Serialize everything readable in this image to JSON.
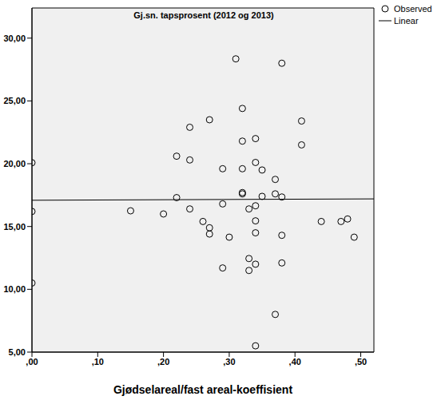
{
  "chart_data": {
    "type": "scatter",
    "title": "Gj.sn. tapsprosent (2012 og 2013)",
    "x_label": "Gjødselareal/fast areal-koeffisient",
    "xlim": [
      0,
      0.52
    ],
    "ylim": [
      5,
      32.4
    ],
    "xticks": [
      {
        "value": 0,
        "label": ",00"
      },
      {
        "value": 0.1,
        "label": ",10"
      },
      {
        "value": 0.2,
        "label": ",20"
      },
      {
        "value": 0.3,
        "label": ",30"
      },
      {
        "value": 0.4,
        "label": ",40"
      },
      {
        "value": 0.5,
        "label": ",50"
      }
    ],
    "yticks": [
      {
        "value": 5,
        "label": "5,00"
      },
      {
        "value": 10,
        "label": "10,00"
      },
      {
        "value": 15,
        "label": "15,00"
      },
      {
        "value": 20,
        "label": "20,00"
      },
      {
        "value": 25,
        "label": "25,00"
      },
      {
        "value": 30,
        "label": "30,00"
      }
    ],
    "grid": false,
    "legend": "right",
    "series": [
      {
        "name": "Observed",
        "type": "scatter",
        "marker": "circle",
        "color": "#000000",
        "x": [
          0,
          0,
          0,
          0.15,
          0.2,
          0.22,
          0.22,
          0.24,
          0.24,
          0.24,
          0.26,
          0.27,
          0.27,
          0.27,
          0.29,
          0.29,
          0.29,
          0.3,
          0.31,
          0.32,
          0.32,
          0.32,
          0.32,
          0.32,
          0.33,
          0.33,
          0.33,
          0.34,
          0.34,
          0.34,
          0.34,
          0.34,
          0.34,
          0.34,
          0.35,
          0.35,
          0.37,
          0.37,
          0.37,
          0.38,
          0.38,
          0.38,
          0.38,
          0.41,
          0.41,
          0.44,
          0.47,
          0.48,
          0.49
        ],
        "values": [
          20.08,
          16.2,
          10.5,
          16.25,
          16.0,
          20.6,
          17.3,
          22.9,
          20.3,
          16.4,
          15.4,
          23.5,
          14.9,
          14.4,
          19.6,
          16.8,
          11.7,
          14.15,
          28.35,
          24.4,
          21.8,
          19.6,
          17.7,
          17.6,
          16.4,
          12.45,
          11.5,
          22.0,
          20.1,
          16.65,
          15.45,
          14.5,
          12.0,
          5.5,
          19.5,
          17.4,
          18.75,
          17.6,
          8.0,
          17.35,
          28.0,
          14.3,
          12.1,
          23.4,
          21.5,
          15.4,
          15.4,
          15.6,
          14.15
        ]
      },
      {
        "name": "Linear",
        "type": "line",
        "line_style": "solid",
        "color": "#000000",
        "x": [
          0,
          0.52
        ],
        "values": [
          17.09,
          17.2
        ]
      }
    ]
  }
}
